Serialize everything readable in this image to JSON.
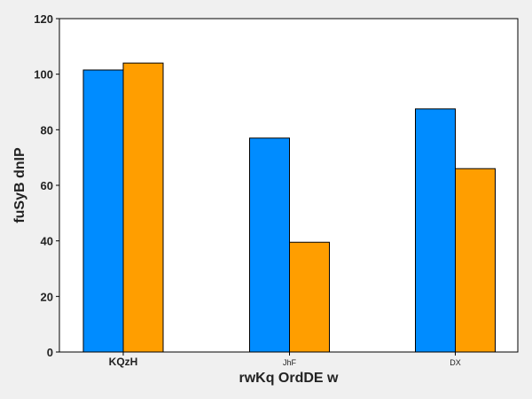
{
  "chart_data": {
    "type": "bar",
    "title": "",
    "xlabel": "rwKq OrdDE w",
    "ylabel": "fuSyB dnIP",
    "categories": [
      "KQzH",
      "JhF",
      "DX"
    ],
    "series": [
      {
        "values": [
          101.5,
          77,
          87.5
        ],
        "color": "#008cff"
      },
      {
        "values": [
          104,
          39.5,
          66
        ],
        "color": "#ff9e00"
      }
    ],
    "ylim": [
      0,
      120
    ],
    "yticks": [
      0,
      20,
      40,
      60,
      80,
      100,
      120
    ],
    "grid": false,
    "legend": "none"
  }
}
